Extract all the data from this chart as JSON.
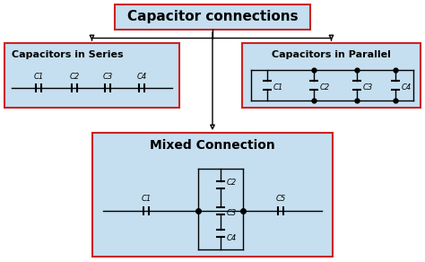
{
  "bg_color": "#ffffff",
  "box_fill": "#c5dff0",
  "box_edge": "#cc2222",
  "line_color": "#000000",
  "title": "Capacitor connections",
  "series_title": "Capacitors in Series",
  "parallel_title": "Capacitors in Parallel",
  "mixed_title": "Mixed Connection",
  "title_fontsize": 11,
  "sub_title_fontsize": 8,
  "cap_label_fontsize": 6
}
